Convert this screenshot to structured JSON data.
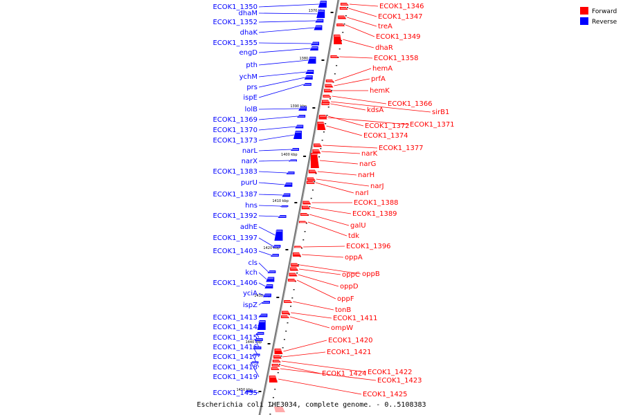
{
  "caption": "Escherichia coli IHE3034, complete genome. - 0..5108383",
  "colors": {
    "forward": "#ff0000",
    "reverse": "#0000ff",
    "backbone": "#888888"
  },
  "legend": [
    {
      "label": "Forward",
      "color": "#ff0000"
    },
    {
      "label": "Reverse",
      "color": "#0000ff"
    }
  ],
  "ticks": [
    "1370 kbp",
    "1380 kbp",
    "1390 kbp",
    "1400 kbp",
    "1410 kbp",
    "1420 kbp",
    "1430 kbp",
    "1440 kbp",
    "1450 kbp"
  ],
  "reverse_genes": [
    "ECOK1_1350",
    "dhaM",
    "ECOK1_1352",
    "dhaK",
    "ECOK1_1355",
    "engD",
    "pth",
    "ychM",
    "prs",
    "ispE",
    "lolB",
    "ECOK1_1369",
    "ECOK1_1370",
    "ECOK1_1373",
    "narL",
    "narX",
    "ECOK1_1383",
    "purU",
    "ECOK1_1387",
    "hns",
    "ECOK1_1392",
    "adhE",
    "ECOK1_1397",
    "ECOK1_1403",
    "cls",
    "kch",
    "ECOK1_1406",
    "yciA",
    "ispZ",
    "ECOK1_1413",
    "ECOK1_1414",
    "ECOK1_1415",
    "ECOK1_1416",
    "ECOK1_1417",
    "ECOK1_1418",
    "ECOK1_1419",
    "ECOK1_1435"
  ],
  "forward_genes": [
    "ECOK1_1346",
    "ECOK1_1347",
    "treA",
    "ECOK1_1349",
    "dhaR",
    "ECOK1_1358",
    "hemA",
    "prfA",
    "hemK",
    "ECOK1_1366",
    "sirB1",
    "kdsA",
    "ECOK1_1371",
    "ECOK1_1372",
    "ECOK1_1374",
    "ECOK1_1377",
    "narK",
    "narG",
    "narH",
    "narJ",
    "narI",
    "ECOK1_1388",
    "ECOK1_1389",
    "galU",
    "tdk",
    "ECOK1_1396",
    "oppA",
    "oppB",
    "oppC",
    "oppD",
    "oppF",
    "tonB",
    "ECOK1_1411",
    "ompW",
    "ECOK1_1420",
    "ECOK1_1421",
    "ECOK1_1422",
    "ECOK1_1424",
    "ECOK1_1423",
    "ECOK1_1425"
  ]
}
